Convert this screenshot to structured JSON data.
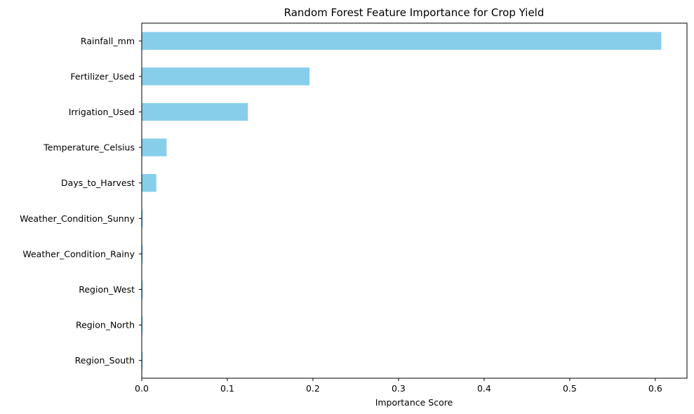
{
  "chart_data": {
    "type": "bar",
    "orientation": "horizontal",
    "title": "Random Forest Feature Importance for Crop Yield",
    "xlabel": "Importance Score",
    "ylabel": "",
    "categories": [
      "Rainfall_mm",
      "Fertilizer_Used",
      "Irrigation_Used",
      "Temperature_Celsius",
      "Days_to_Harvest",
      "Weather_Condition_Sunny",
      "Weather_Condition_Rainy",
      "Region_West",
      "Region_North",
      "Region_South"
    ],
    "values": [
      0.607,
      0.196,
      0.124,
      0.029,
      0.017,
      0.0012,
      0.0012,
      0.0012,
      0.0011,
      0.0011
    ],
    "xlim": [
      0,
      0.637
    ],
    "xticks": [
      0.0,
      0.1,
      0.2,
      0.3,
      0.4,
      0.5,
      0.6
    ],
    "xtick_labels": [
      "0.0",
      "0.1",
      "0.2",
      "0.3",
      "0.4",
      "0.5",
      "0.6"
    ],
    "bar_color": "#87ceeb",
    "grid": false,
    "legend": "none"
  }
}
